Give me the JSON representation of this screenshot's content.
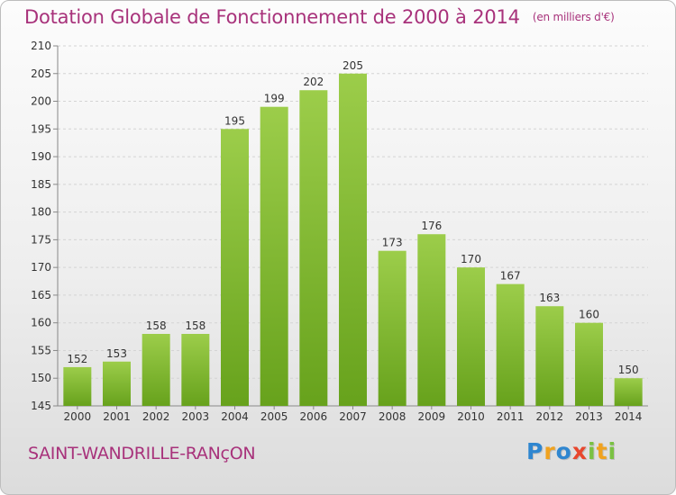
{
  "title": "Dotation Globale de Fonctionnement de 2000 à 2014",
  "unit": "(en milliers d'€)",
  "commune": "SAINT-WANDRILLE-RANçON",
  "logo": {
    "letters": [
      "P",
      "r",
      "o",
      "x",
      "i",
      "t",
      "i"
    ],
    "colors": [
      "#2f86d0",
      "#f0a21f",
      "#2f86d0",
      "#e8462d",
      "#7ac143",
      "#f0a21f",
      "#7ac143"
    ]
  },
  "colors": {
    "bar_top": "#9ccd4a",
    "bar_bottom": "#67a21c",
    "title": "#a8327b"
  },
  "chart_data": {
    "type": "bar",
    "categories": [
      "2000",
      "2001",
      "2002",
      "2003",
      "2004",
      "2005",
      "2006",
      "2007",
      "2008",
      "2009",
      "2010",
      "2011",
      "2012",
      "2013",
      "2014"
    ],
    "values": [
      152,
      153,
      158,
      158,
      195,
      199,
      202,
      205,
      173,
      176,
      170,
      167,
      163,
      160,
      150
    ],
    "ylim": [
      145,
      210
    ],
    "yticks": [
      145,
      150,
      155,
      160,
      165,
      170,
      175,
      180,
      185,
      190,
      195,
      200,
      205,
      210
    ],
    "grid": true
  }
}
